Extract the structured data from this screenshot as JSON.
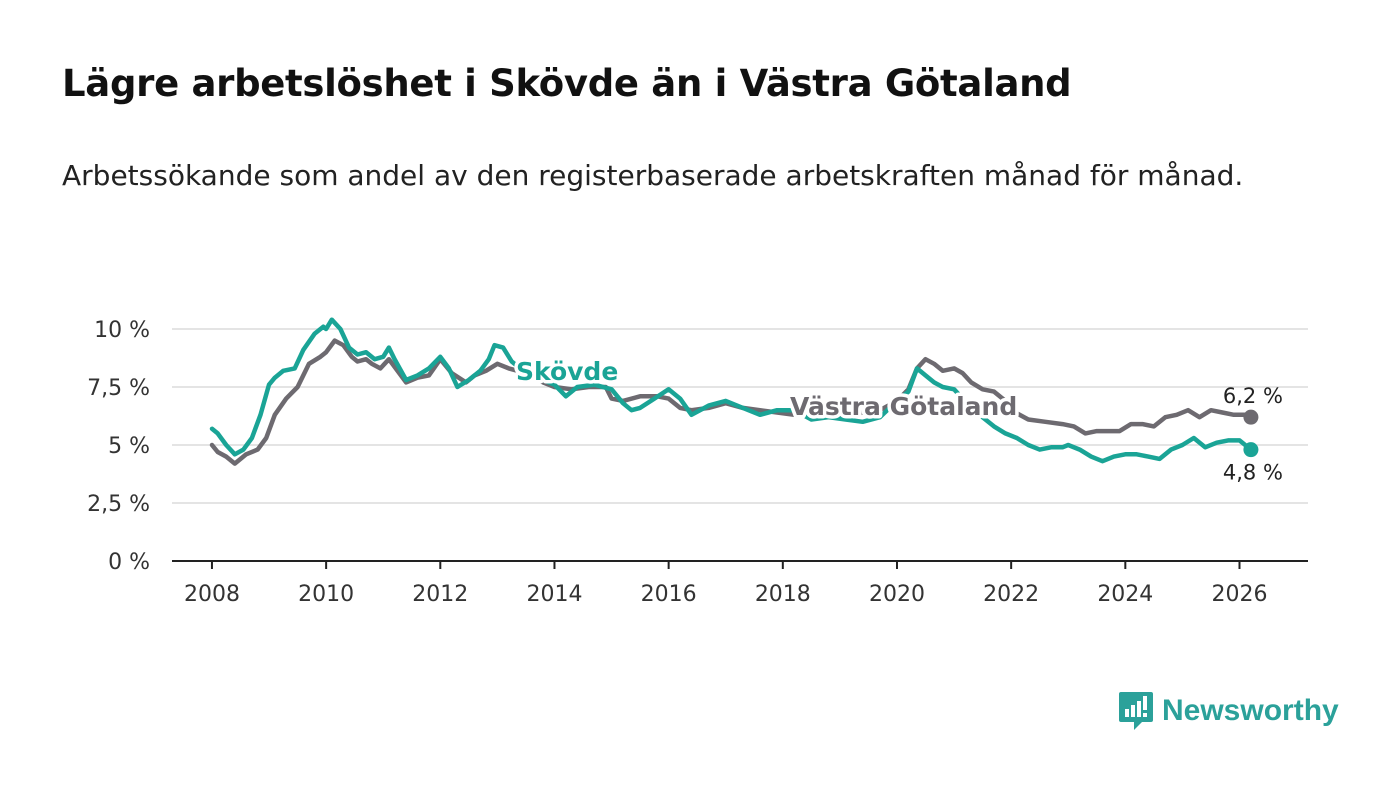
{
  "title": "Lägre arbetslöshet i Skövde än i Västra Götaland",
  "subtitle": "Arbetssökande som andel av den registerbaserade arbetskraften månad för månad.",
  "brand": {
    "name": "Newsworthy",
    "color": "#2ba19a"
  },
  "chart_data": {
    "type": "line",
    "title": "Lägre arbetslöshet i Skövde än i Västra Götaland",
    "xlabel": "",
    "ylabel": "",
    "xlim": [
      2007.3,
      2027.2
    ],
    "ylim": [
      0,
      10
    ],
    "grid": true,
    "yticks": [
      0,
      2.5,
      5,
      7.5,
      10
    ],
    "ytick_labels": [
      "0 %",
      "2,5 %",
      "5 %",
      "7,5 %",
      "10 %"
    ],
    "xticks": [
      2008,
      2010,
      2012,
      2014,
      2016,
      2018,
      2020,
      2022,
      2024,
      2026
    ],
    "xtick_labels": [
      "2008",
      "2010",
      "2012",
      "2014",
      "2016",
      "2018",
      "2020",
      "2022",
      "2024",
      "2026"
    ],
    "series": [
      {
        "name": "Västra Götaland",
        "color": "#6d6a70",
        "end_label": "6,2 %",
        "x": [
          2008.0,
          2008.1,
          2008.25,
          2008.4,
          2008.6,
          2008.8,
          2008.95,
          2009.1,
          2009.3,
          2009.5,
          2009.7,
          2009.9,
          2010.0,
          2010.15,
          2010.3,
          2010.45,
          2010.55,
          2010.7,
          2010.8,
          2010.95,
          2011.1,
          2011.25,
          2011.4,
          2011.6,
          2011.8,
          2012.0,
          2012.2,
          2012.45,
          2012.6,
          2012.8,
          2013.0,
          2013.2,
          2013.5,
          2013.8,
          2014.0,
          2014.3,
          2014.6,
          2014.9,
          2015.0,
          2015.2,
          2015.5,
          2015.8,
          2016.0,
          2016.2,
          2016.4,
          2016.7,
          2017.0,
          2017.3,
          2017.6,
          2017.9,
          2018.2,
          2018.5,
          2018.8,
          2019.1,
          2019.4,
          2019.7,
          2020.0,
          2020.2,
          2020.35,
          2020.5,
          2020.65,
          2020.8,
          2021.0,
          2021.15,
          2021.3,
          2021.5,
          2021.7,
          2021.9,
          2022.0,
          2022.3,
          2022.6,
          2022.9,
          2023.1,
          2023.3,
          2023.5,
          2023.7,
          2023.9,
          2024.1,
          2024.3,
          2024.5,
          2024.7,
          2024.9,
          2025.1,
          2025.3,
          2025.5,
          2025.7,
          2025.9,
          2026.1,
          2026.2
        ],
        "values": [
          5.0,
          4.7,
          4.5,
          4.2,
          4.6,
          4.8,
          5.3,
          6.3,
          7.0,
          7.5,
          8.5,
          8.8,
          9.0,
          9.5,
          9.3,
          8.8,
          8.6,
          8.7,
          8.5,
          8.3,
          8.7,
          8.2,
          7.7,
          7.9,
          8.0,
          8.7,
          8.1,
          7.7,
          8.0,
          8.2,
          8.5,
          8.3,
          8.1,
          7.7,
          7.5,
          7.4,
          7.5,
          7.5,
          7.0,
          6.9,
          7.1,
          7.1,
          7.0,
          6.6,
          6.5,
          6.6,
          6.8,
          6.6,
          6.5,
          6.4,
          6.3,
          6.3,
          6.2,
          6.2,
          6.4,
          6.5,
          6.9,
          7.4,
          8.3,
          8.7,
          8.5,
          8.2,
          8.3,
          8.1,
          7.7,
          7.4,
          7.3,
          6.9,
          6.5,
          6.1,
          6.0,
          5.9,
          5.8,
          5.5,
          5.6,
          5.6,
          5.6,
          5.9,
          5.9,
          5.8,
          6.2,
          6.3,
          6.5,
          6.2,
          6.5,
          6.4,
          6.3,
          6.3,
          6.2
        ]
      },
      {
        "name": "Skövde",
        "color": "#1aa496",
        "end_label": "4,8 %",
        "x": [
          2008.0,
          2008.1,
          2008.25,
          2008.4,
          2008.55,
          2008.7,
          2008.85,
          2009.0,
          2009.1,
          2009.25,
          2009.45,
          2009.6,
          2009.8,
          2009.95,
          2010.0,
          2010.1,
          2010.25,
          2010.4,
          2010.55,
          2010.7,
          2010.85,
          2011.0,
          2011.1,
          2011.2,
          2011.4,
          2011.6,
          2011.8,
          2012.0,
          2012.15,
          2012.3,
          2012.5,
          2012.7,
          2012.85,
          2012.95,
          2013.1,
          2013.25,
          2013.4,
          2013.7,
          2014.0,
          2014.2,
          2014.4,
          2014.7,
          2015.0,
          2015.2,
          2015.35,
          2015.5,
          2015.75,
          2016.0,
          2016.2,
          2016.4,
          2016.7,
          2017.0,
          2017.3,
          2017.6,
          2017.9,
          2018.2,
          2018.5,
          2018.8,
          2019.1,
          2019.4,
          2019.7,
          2020.0,
          2020.2,
          2020.35,
          2020.5,
          2020.65,
          2020.8,
          2021.0,
          2021.15,
          2021.3,
          2021.5,
          2021.7,
          2021.9,
          2022.1,
          2022.3,
          2022.5,
          2022.7,
          2022.9,
          2023.0,
          2023.2,
          2023.4,
          2023.6,
          2023.8,
          2024.0,
          2024.2,
          2024.4,
          2024.6,
          2024.8,
          2025.0,
          2025.2,
          2025.4,
          2025.6,
          2025.8,
          2026.0,
          2026.2
        ],
        "values": [
          5.7,
          5.5,
          5.0,
          4.6,
          4.8,
          5.3,
          6.3,
          7.6,
          7.9,
          8.2,
          8.3,
          9.1,
          9.8,
          10.1,
          10.0,
          10.4,
          10.0,
          9.2,
          8.9,
          9.0,
          8.7,
          8.8,
          9.2,
          8.7,
          7.8,
          8.0,
          8.3,
          8.8,
          8.3,
          7.5,
          7.8,
          8.2,
          8.7,
          9.3,
          9.2,
          8.6,
          8.3,
          7.9,
          7.6,
          7.1,
          7.5,
          7.6,
          7.4,
          6.8,
          6.5,
          6.6,
          7.0,
          7.4,
          7.0,
          6.3,
          6.7,
          6.9,
          6.6,
          6.3,
          6.5,
          6.5,
          6.1,
          6.2,
          6.1,
          6.0,
          6.2,
          6.9,
          7.3,
          8.3,
          8.0,
          7.7,
          7.5,
          7.4,
          7.0,
          6.6,
          6.2,
          5.8,
          5.5,
          5.3,
          5.0,
          4.8,
          4.9,
          4.9,
          5.0,
          4.8,
          4.5,
          4.3,
          4.5,
          4.6,
          4.6,
          4.5,
          4.4,
          4.8,
          5.0,
          5.3,
          4.9,
          5.1,
          5.2,
          5.2,
          4.8
        ]
      }
    ]
  }
}
